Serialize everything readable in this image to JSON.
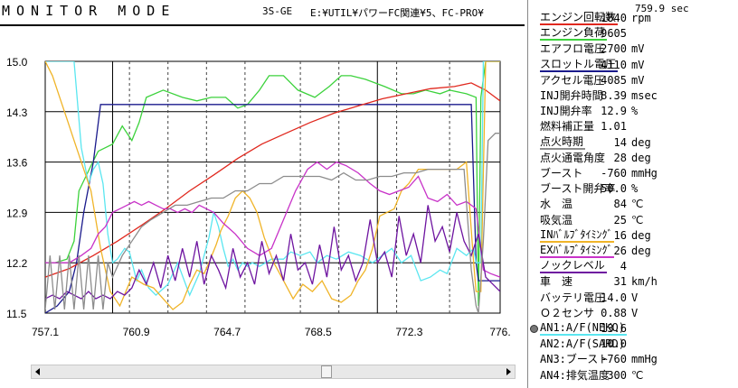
{
  "header": {
    "app_title": "MONITOR MODE",
    "car_model": "3S-GE",
    "file_path": "E:¥UTIL¥パワーFC関連¥5、FC-PRO¥"
  },
  "colors": {
    "plot_bg": "#ffffff",
    "green": "#3cd23c",
    "navy": "#1a1a8c",
    "red": "#e0281e",
    "cyan": "#5ae6f0",
    "orange": "#f0b428",
    "magenta": "#c832c8",
    "purple": "#6e14a0",
    "gray": "#8c8c8c"
  },
  "chart_data": {
    "type": "line",
    "xlim": [
      757.1,
      776.0
    ],
    "ylim": [
      11.5,
      15.0
    ],
    "x_ticks": [
      "757.1",
      "760.9",
      "764.7",
      "768.5",
      "772.3",
      "776."
    ],
    "y_ticks": [
      "15.0",
      "14.3",
      "13.6",
      "12.9",
      "12.2",
      "11.5"
    ],
    "markers_solid": [
      759.9,
      770.9
    ],
    "markers_dashed": [
      760.6,
      762.2,
      763.8,
      765.4,
      767.7,
      769.3,
      771.7,
      773.9
    ],
    "series": [
      {
        "color": "green",
        "x": [
          757.1,
          757.5,
          758.0,
          758.3,
          758.5,
          759.0,
          759.3,
          759.6,
          759.9,
          760.3,
          760.7,
          761.0,
          761.3,
          762.0,
          762.8,
          763.4,
          764.0,
          764.6,
          765.1,
          765.5,
          766.0,
          766.4,
          767.0,
          767.6,
          768.3,
          768.9,
          769.4,
          769.8,
          770.4,
          771.2,
          771.9,
          772.4,
          772.9,
          773.5,
          773.9,
          774.6,
          775.0,
          775.1,
          775.2,
          775.4,
          776.0
        ],
        "y": [
          12.2,
          12.2,
          12.25,
          12.5,
          13.2,
          13.55,
          13.75,
          13.8,
          13.85,
          14.1,
          13.9,
          14.15,
          14.5,
          14.6,
          14.5,
          14.45,
          14.5,
          14.5,
          14.35,
          14.4,
          14.6,
          14.8,
          14.8,
          14.6,
          14.5,
          14.65,
          14.8,
          14.8,
          14.75,
          14.65,
          14.55,
          14.55,
          14.6,
          14.55,
          14.6,
          14.55,
          14.5,
          11.6,
          14.5,
          15.0,
          15.0
        ]
      },
      {
        "color": "navy",
        "x": [
          757.1,
          757.6,
          758.1,
          758.4,
          758.7,
          759.1,
          759.4,
          774.6,
          774.8,
          775.0,
          775.1,
          775.3,
          776.0
        ],
        "y": [
          11.5,
          11.6,
          11.8,
          12.2,
          12.9,
          13.6,
          14.4,
          14.4,
          14.4,
          12.2,
          11.95,
          11.95,
          11.95
        ]
      },
      {
        "color": "red",
        "x": [
          757.1,
          758.1,
          759.1,
          760.1,
          761.1,
          762.1,
          763.1,
          764.1,
          765.1,
          766.1,
          767.1,
          768.1,
          769.1,
          770.1,
          771.1,
          772.1,
          773.1,
          774.1,
          774.8,
          775.4,
          775.8,
          776.0
        ],
        "y": [
          12.0,
          12.12,
          12.3,
          12.5,
          12.72,
          12.95,
          13.2,
          13.42,
          13.65,
          13.85,
          14.0,
          14.15,
          14.28,
          14.38,
          14.48,
          14.55,
          14.62,
          14.65,
          14.7,
          14.6,
          14.5,
          14.45
        ]
      },
      {
        "color": "cyan",
        "x": [
          757.1,
          757.7,
          758.0,
          758.3,
          758.6,
          758.9,
          759.1,
          759.3,
          759.5,
          759.7,
          759.9,
          760.1,
          760.4,
          760.6,
          760.9,
          761.1,
          761.4,
          761.7,
          762.2,
          762.6,
          763.1,
          763.5,
          763.9,
          764.1,
          764.3,
          764.5,
          764.7,
          764.9,
          765.1,
          765.3,
          765.5,
          765.7,
          766.0,
          766.5,
          767.0,
          767.3,
          767.7,
          768.1,
          768.4,
          768.8,
          769.2,
          769.7,
          770.2,
          770.7,
          771.1,
          771.5,
          771.9,
          772.3,
          772.7,
          773.1,
          773.5,
          773.8,
          774.2,
          774.6,
          774.9,
          775.0,
          775.2,
          775.3,
          775.5,
          775.7,
          776.0
        ],
        "y": [
          15.0,
          15.0,
          15.0,
          15.0,
          13.8,
          13.3,
          13.5,
          13.6,
          13.3,
          12.6,
          12.2,
          12.25,
          12.4,
          12.35,
          11.95,
          12.1,
          11.85,
          11.75,
          11.9,
          12.2,
          11.75,
          12.05,
          12.55,
          12.9,
          12.7,
          12.4,
          12.15,
          12.25,
          12.1,
          12.2,
          12.15,
          12.2,
          12.15,
          12.25,
          12.25,
          12.35,
          12.3,
          12.35,
          12.2,
          12.3,
          12.25,
          12.35,
          12.3,
          12.2,
          12.3,
          12.4,
          12.2,
          12.3,
          11.95,
          12.0,
          12.1,
          12.05,
          12.4,
          12.3,
          12.4,
          12.2,
          12.2,
          15.0,
          15.0,
          15.0,
          15.0
        ]
      },
      {
        "color": "orange",
        "x": [
          757.1,
          757.4,
          757.7,
          758.0,
          758.3,
          758.6,
          759.0,
          759.4,
          759.8,
          760.2,
          760.7,
          761.2,
          761.6,
          762.0,
          762.4,
          762.8,
          763.1,
          763.4,
          763.7,
          763.9,
          764.2,
          764.4,
          764.7,
          765.0,
          765.3,
          765.6,
          765.9,
          766.2,
          766.6,
          767.0,
          767.4,
          767.8,
          768.2,
          768.6,
          769.0,
          769.4,
          769.8,
          770.1,
          770.4,
          770.7,
          771.0,
          771.3,
          771.6,
          771.9,
          772.2,
          772.6,
          773.0,
          773.4,
          773.8,
          774.2,
          774.6,
          774.9,
          775.0,
          775.2,
          775.4,
          775.7,
          776.0
        ],
        "y": [
          15.0,
          14.8,
          14.5,
          14.2,
          13.9,
          13.6,
          13.2,
          12.4,
          11.8,
          11.6,
          12.0,
          11.9,
          11.85,
          11.7,
          11.55,
          11.65,
          11.9,
          12.1,
          12.05,
          12.2,
          12.45,
          12.65,
          12.85,
          13.1,
          13.2,
          13.1,
          12.9,
          12.55,
          12.2,
          11.95,
          11.7,
          11.9,
          11.8,
          11.95,
          11.7,
          11.65,
          11.75,
          11.95,
          12.1,
          12.4,
          12.85,
          12.9,
          12.95,
          13.2,
          13.3,
          13.5,
          13.5,
          13.5,
          13.5,
          13.5,
          13.6,
          12.2,
          11.8,
          11.8,
          15.0,
          15.0,
          15.0
        ]
      },
      {
        "color": "magenta",
        "x": [
          757.1,
          757.6,
          758.1,
          758.6,
          759.0,
          759.3,
          759.6,
          759.9,
          760.2,
          760.5,
          760.8,
          761.1,
          761.4,
          761.7,
          762.0,
          762.3,
          762.6,
          762.9,
          763.2,
          763.5,
          763.8,
          764.1,
          764.5,
          765.0,
          765.5,
          766.0,
          766.5,
          767.0,
          767.5,
          768.0,
          768.4,
          768.8,
          769.2,
          769.6,
          770.1,
          770.6,
          771.0,
          771.4,
          771.8,
          772.2,
          772.6,
          773.0,
          773.4,
          773.8,
          774.2,
          774.6,
          775.0,
          775.3,
          775.6,
          776.0
        ],
        "y": [
          12.2,
          12.2,
          12.2,
          12.3,
          12.4,
          12.6,
          12.7,
          12.9,
          12.95,
          13.0,
          13.05,
          13.0,
          13.05,
          13.0,
          12.95,
          12.95,
          12.9,
          12.95,
          12.9,
          13.0,
          12.95,
          12.9,
          12.75,
          12.6,
          12.4,
          12.3,
          12.4,
          12.8,
          13.2,
          13.5,
          13.6,
          13.5,
          13.6,
          13.55,
          13.45,
          13.3,
          13.2,
          13.15,
          13.2,
          13.25,
          13.4,
          13.1,
          13.05,
          13.15,
          13.0,
          13.05,
          12.95,
          12.1,
          12.05,
          12.0
        ]
      },
      {
        "color": "purple",
        "x": [
          757.1,
          757.4,
          757.7,
          758.0,
          758.3,
          758.6,
          758.9,
          759.2,
          759.5,
          759.8,
          760.1,
          760.4,
          760.7,
          761.0,
          761.3,
          761.6,
          761.9,
          762.2,
          762.5,
          762.8,
          763.1,
          763.4,
          763.7,
          764.0,
          764.3,
          764.6,
          764.9,
          765.2,
          765.5,
          765.8,
          766.1,
          766.4,
          766.7,
          767.0,
          767.3,
          767.6,
          767.9,
          768.2,
          768.5,
          768.8,
          769.1,
          769.4,
          769.7,
          770.0,
          770.3,
          770.6,
          770.9,
          771.2,
          771.5,
          771.8,
          772.1,
          772.4,
          772.7,
          773.0,
          773.3,
          773.6,
          773.9,
          774.2,
          774.5,
          774.8,
          775.1,
          775.4,
          775.7,
          776.0
        ],
        "y": [
          11.7,
          11.75,
          11.7,
          11.8,
          11.75,
          11.7,
          11.8,
          11.7,
          11.75,
          11.7,
          11.8,
          11.75,
          11.85,
          12.1,
          11.9,
          12.2,
          11.85,
          12.3,
          11.95,
          12.4,
          12.0,
          12.5,
          11.9,
          12.3,
          12.1,
          11.85,
          12.4,
          12.0,
          12.2,
          11.9,
          12.5,
          12.05,
          12.3,
          11.95,
          12.6,
          12.1,
          12.2,
          11.9,
          12.45,
          12.0,
          12.7,
          12.1,
          12.3,
          11.95,
          12.2,
          12.8,
          12.2,
          12.35,
          12.0,
          12.85,
          12.3,
          12.6,
          12.2,
          13.0,
          12.5,
          12.7,
          12.35,
          12.9,
          12.5,
          12.3,
          12.6,
          12.0,
          11.9,
          11.8
        ]
      },
      {
        "color": "gray",
        "x": [
          757.1,
          757.3,
          757.5,
          757.7,
          757.9,
          758.1,
          758.3,
          758.5,
          758.7,
          758.9,
          759.1,
          759.3,
          759.5,
          759.7,
          759.9,
          760.3,
          760.7,
          761.1,
          761.5,
          762.0,
          762.5,
          763.0,
          763.5,
          764.0,
          764.5,
          765.0,
          765.5,
          766.0,
          766.5,
          767.0,
          767.5,
          768.0,
          768.5,
          769.0,
          769.5,
          770.0,
          770.5,
          771.0,
          771.5,
          772.0,
          772.5,
          773.0,
          773.5,
          774.0,
          774.5,
          774.8,
          775.0,
          775.1,
          775.3,
          775.5,
          775.8,
          776.0
        ],
        "y": [
          11.55,
          12.3,
          11.55,
          12.3,
          11.55,
          12.3,
          11.55,
          12.3,
          11.55,
          12.3,
          11.55,
          12.3,
          11.55,
          12.2,
          12.0,
          12.3,
          12.5,
          12.7,
          12.8,
          12.9,
          13.0,
          13.0,
          13.05,
          13.1,
          13.1,
          13.2,
          13.2,
          13.3,
          13.3,
          13.4,
          13.4,
          13.4,
          13.4,
          13.35,
          13.45,
          13.35,
          13.35,
          13.4,
          13.4,
          13.45,
          13.45,
          13.5,
          13.5,
          13.5,
          13.5,
          12.1,
          11.6,
          11.5,
          12.5,
          13.9,
          14.0,
          14.0
        ]
      }
    ]
  },
  "panel": {
    "elapsed": "759.9 sec",
    "rows": [
      {
        "label": "エンジン回転数",
        "value": "1840",
        "unit": "rpm",
        "line": "#e0281e"
      },
      {
        "label": "エンジン負荷",
        "value": "9605",
        "unit": "",
        "line": "#3cd23c"
      },
      {
        "label": "エアフロ電圧",
        "value": "2700",
        "unit": "mV",
        "line": ""
      },
      {
        "label": "スロットル電圧",
        "value": "4110",
        "unit": "mV",
        "line": "#1a1a8c"
      },
      {
        "label": "アクセル電圧",
        "value": "4085",
        "unit": "mV",
        "line": ""
      },
      {
        "label": "INJ開弁時間",
        "value": "8.39",
        "unit": "msec",
        "line": ""
      },
      {
        "label": "INJ開弁率",
        "value": "12.9",
        "unit": "%",
        "line": ""
      },
      {
        "label": "燃料補正量",
        "value": "1.01",
        "unit": "",
        "line": ""
      },
      {
        "label": "点火時期",
        "value": "14",
        "unit": "deg",
        "line": "#8c8c8c"
      },
      {
        "label": "点火通電角度",
        "value": "28",
        "unit": "deg",
        "line": ""
      },
      {
        "label": "ブースト",
        "value": "-760",
        "unit": "mmHg",
        "line": ""
      },
      {
        "label": "ブースト開弁率",
        "value": "50.0",
        "unit": "%",
        "line": ""
      },
      {
        "label": "水　温",
        "value": "84",
        "unit": "℃",
        "line": ""
      },
      {
        "label": "吸気温",
        "value": "25",
        "unit": "℃",
        "line": ""
      },
      {
        "label": "INﾊﾞﾙﾌﾞﾀｲﾐﾝｸﾞ",
        "value": "16",
        "unit": "deg",
        "line": "#f0b428"
      },
      {
        "label": "EXﾊﾞﾙﾌﾞﾀｲﾐﾝｸﾞ",
        "value": "26",
        "unit": "deg",
        "line": "#c832c8"
      },
      {
        "label": "ノックレベル",
        "value": "4",
        "unit": "",
        "line": "#6e14a0"
      },
      {
        "label": "車　速",
        "value": "31",
        "unit": "km/h",
        "line": ""
      },
      {
        "label": "バッテリ電圧",
        "value": "14.0",
        "unit": "V",
        "line": ""
      },
      {
        "label": "Ｏ２センサ",
        "value": "0.88",
        "unit": "V",
        "line": ""
      },
      {
        "label": "AN1:A/F(NEKO)",
        "value": "13.6",
        "unit": "",
        "line": "#5ae6f0"
      },
      {
        "label": "AN2:A/F(SARD)",
        "value": "10.0",
        "unit": "",
        "line": ""
      },
      {
        "label": "AN3:ブースト",
        "value": "-760",
        "unit": "mmHg",
        "line": ""
      },
      {
        "label": "AN4:排気温度",
        "value": "300",
        "unit": "℃",
        "line": ""
      }
    ]
  }
}
